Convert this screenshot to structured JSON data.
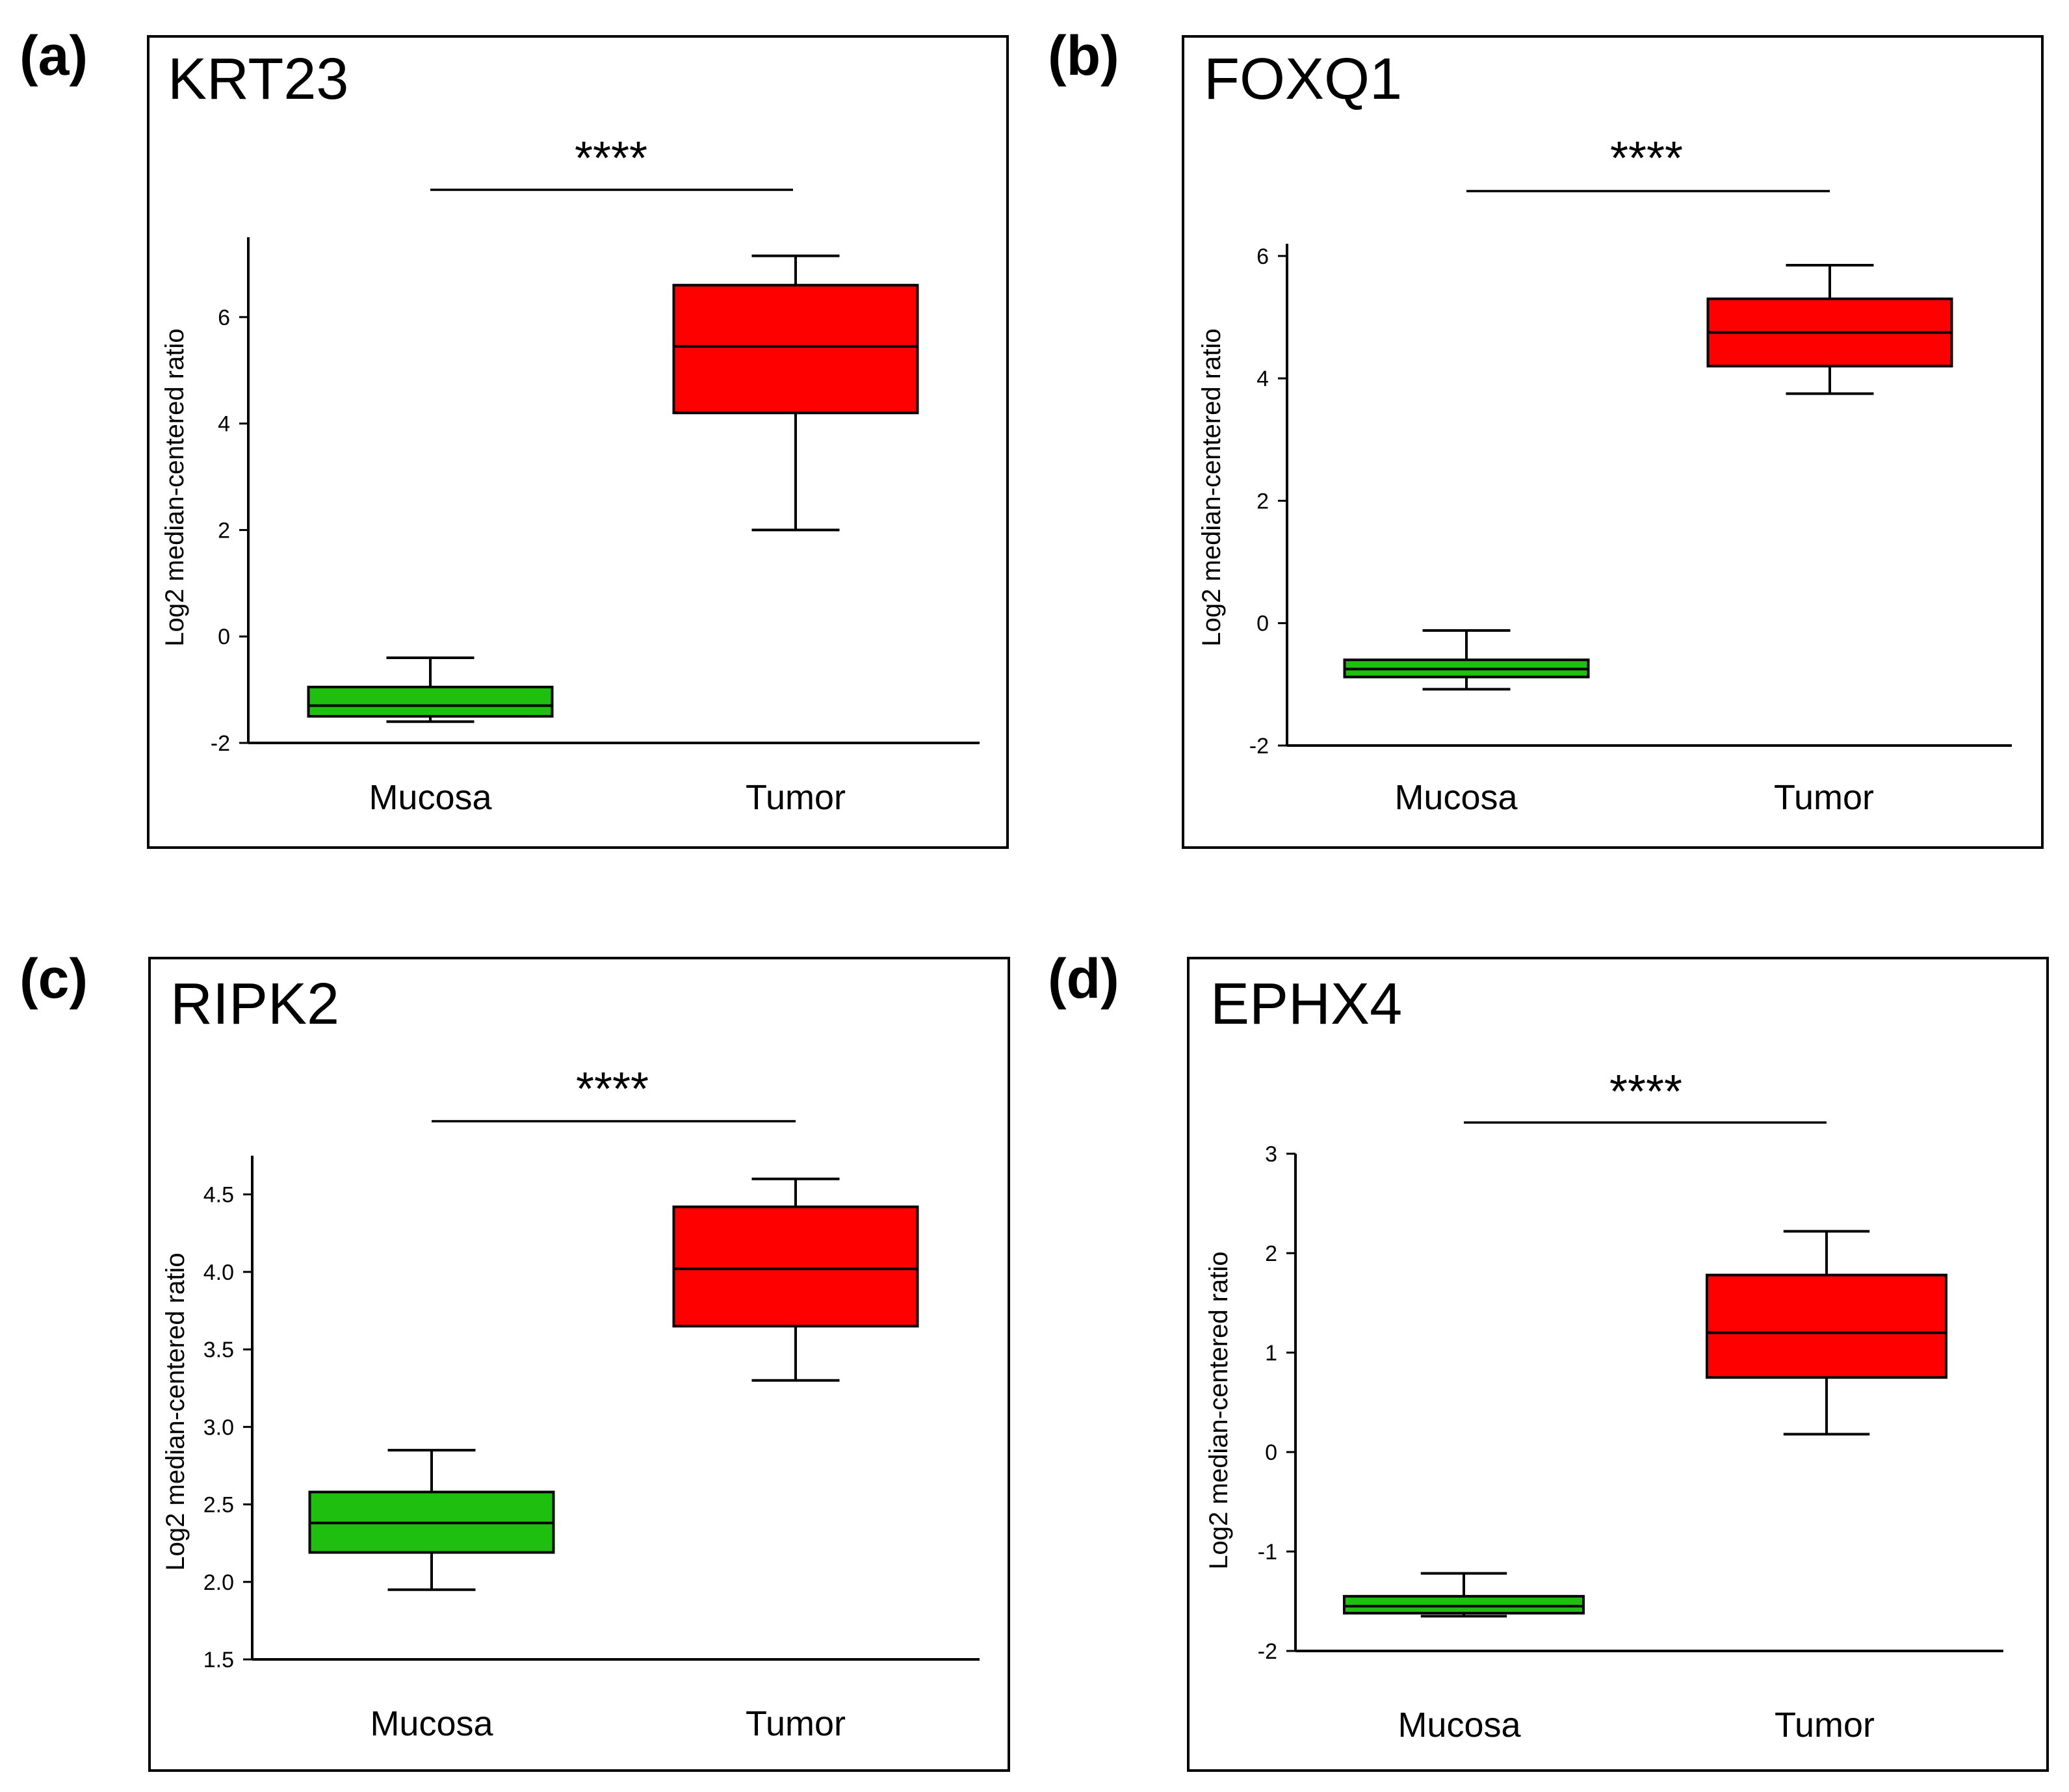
{
  "colors": {
    "mucosa": "#1fbf10",
    "tumor": "#ff0000",
    "axis": "#000000",
    "frame": "#000000"
  },
  "chart_data": [
    {
      "type": "box",
      "panel": "(a)",
      "title": "KRT23",
      "ylabel": "Log2 median-centered ratio",
      "xlabel": "",
      "ylim": [
        -2,
        7.5
      ],
      "yticks": [
        -2,
        0,
        2,
        4,
        6
      ],
      "tick_labels": [
        "-2",
        "0",
        "2",
        "4",
        "6"
      ],
      "categories": [
        "Mucosa",
        "Tumor"
      ],
      "boxes": [
        {
          "name": "Mucosa",
          "color": "mucosa",
          "min": -1.6,
          "q1": -1.5,
          "median": -1.3,
          "q3": -0.95,
          "max": -0.4
        },
        {
          "name": "Tumor",
          "color": "tumor",
          "min": 2.0,
          "q1": 4.2,
          "median": 5.45,
          "q3": 6.6,
          "max": 7.15
        }
      ],
      "significance": "****"
    },
    {
      "type": "box",
      "panel": "(b)",
      "title": "FOXQ1",
      "ylabel": "Log2 median-centered ratio",
      "xlabel": "",
      "ylim": [
        -2,
        6.2
      ],
      "yticks": [
        -2,
        0,
        2,
        4,
        6
      ],
      "tick_labels": [
        "-2",
        "0",
        "2",
        "4",
        "6"
      ],
      "categories": [
        "Mucosa",
        "Tumor"
      ],
      "boxes": [
        {
          "name": "Mucosa",
          "color": "mucosa",
          "min": -1.08,
          "q1": -0.88,
          "median": -0.75,
          "q3": -0.6,
          "max": -0.12
        },
        {
          "name": "Tumor",
          "color": "tumor",
          "min": 3.75,
          "q1": 4.2,
          "median": 4.75,
          "q3": 5.3,
          "max": 5.85
        }
      ],
      "significance": "****"
    },
    {
      "type": "box",
      "panel": "(c)",
      "title": "RIPK2",
      "ylabel": "Log2 median-centered ratio",
      "xlabel": "",
      "ylim": [
        1.5,
        4.75
      ],
      "yticks": [
        1.5,
        2.0,
        2.5,
        3.0,
        3.5,
        4.0,
        4.5
      ],
      "tick_labels": [
        "1.5",
        "2.0",
        "2.5",
        "3.0",
        "3.5",
        "4.0",
        "4.5"
      ],
      "categories": [
        "Mucosa",
        "Tumor"
      ],
      "boxes": [
        {
          "name": "Mucosa",
          "color": "mucosa",
          "min": 1.95,
          "q1": 2.19,
          "median": 2.38,
          "q3": 2.58,
          "max": 2.85
        },
        {
          "name": "Tumor",
          "color": "tumor",
          "min": 3.3,
          "q1": 3.65,
          "median": 4.02,
          "q3": 4.42,
          "max": 4.6
        }
      ],
      "significance": "****"
    },
    {
      "type": "box",
      "panel": "(d)",
      "title": "EPHX4",
      "ylabel": "Log2 median-centered ratio",
      "xlabel": "",
      "ylim": [
        -2,
        3
      ],
      "yticks": [
        -2,
        -1,
        0,
        1,
        2,
        3
      ],
      "tick_labels": [
        "-2",
        "-1",
        "0",
        "1",
        "2",
        "3"
      ],
      "categories": [
        "Mucosa",
        "Tumor"
      ],
      "boxes": [
        {
          "name": "Mucosa",
          "color": "mucosa",
          "min": -1.65,
          "q1": -1.62,
          "median": -1.55,
          "q3": -1.45,
          "max": -1.22
        },
        {
          "name": "Tumor",
          "color": "tumor",
          "min": 0.18,
          "q1": 0.75,
          "median": 1.2,
          "q3": 1.78,
          "max": 2.22
        }
      ],
      "significance": "****"
    }
  ]
}
